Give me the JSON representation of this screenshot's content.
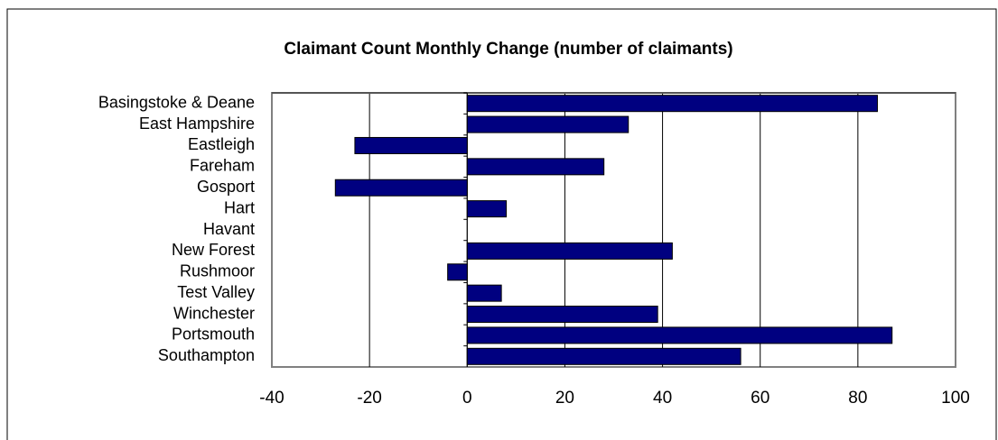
{
  "chart_data": {
    "type": "barh",
    "title": "Claimant Count Monthly Change (number of claimants)",
    "categories": [
      "Basingstoke & Deane",
      "East Hampshire",
      "Eastleigh",
      "Fareham",
      "Gosport",
      "Hart",
      "Havant",
      "New Forest",
      "Rushmoor",
      "Test Valley",
      "Winchester",
      "Portsmouth",
      "Southampton"
    ],
    "values": [
      84,
      33,
      -23,
      28,
      -27,
      8,
      0,
      42,
      -4,
      7,
      39,
      87,
      56
    ],
    "color": "#000080",
    "xlim": [
      -40,
      100
    ],
    "xticks": [
      -40,
      -20,
      0,
      20,
      40,
      60,
      80,
      100
    ],
    "grid": true
  }
}
